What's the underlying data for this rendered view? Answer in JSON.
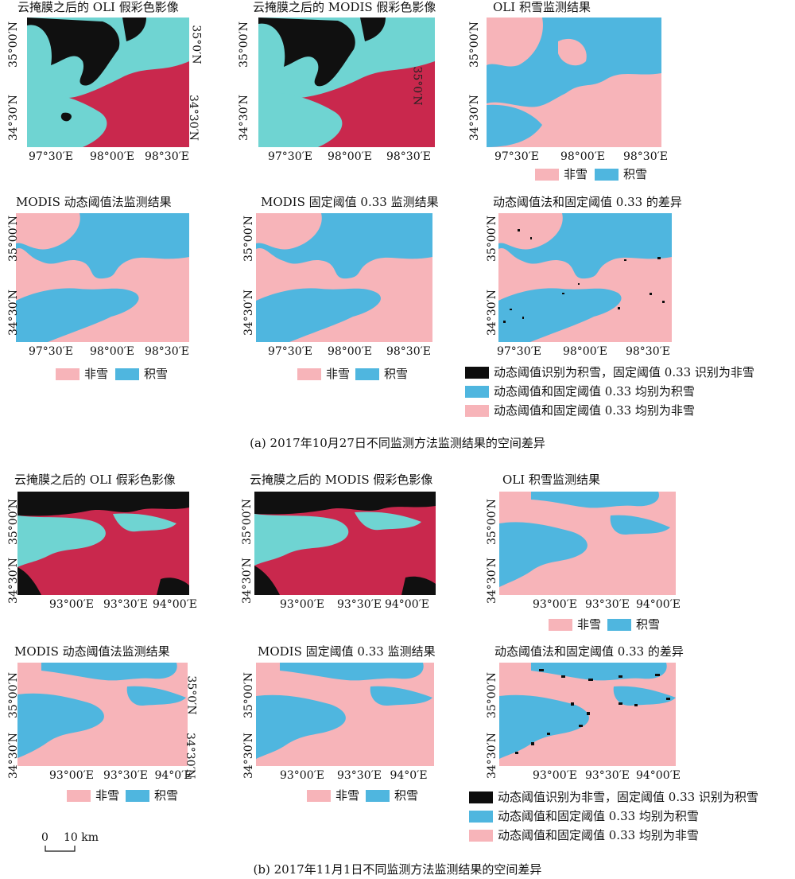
{
  "colors": {
    "non_snow": "#f7b4b9",
    "snow": "#4fb6df",
    "diff_black": "#0d0d0d",
    "fc_black": "#101010",
    "fc_cyan": "#6fd4d2",
    "fc_red": "#c9284d"
  },
  "section_a": {
    "titles": {
      "oli_fc": "云掩膜之后的 OLI 假彩色影像",
      "modis_fc": "云掩膜之后的 MODIS 假彩色影像",
      "oli_snow": "OLI 积雪监测结果",
      "modis_dyn": "MODIS 动态阈值法监测结果",
      "modis_fixed": "MODIS 固定阈值 0.33 监测结果",
      "diff": "动态阈值法和固定阈值 0.33 的差异"
    },
    "xticks": [
      "97°30′E",
      "98°00′E",
      "98°30′E"
    ],
    "yticks": [
      "35°00′N",
      "34°30′N"
    ],
    "yticks_right_oli": [
      "35°0′N",
      "34°30′N"
    ],
    "ytick_mid_modis": "35°0′N",
    "legend": {
      "non_snow": "非雪",
      "snow": "积雪"
    },
    "diff_legend": {
      "black": "动态阈值识别为积雪，固定阈值 0.33 识别为非雪",
      "blue": "动态阈值和固定阈值 0.33 均别为积雪",
      "pink": "动态阈值和固定阈值 0.33 均别为非雪"
    },
    "caption": "(a) 2017年10月27日不同监测方法监测结果的空间差异"
  },
  "section_b": {
    "titles": {
      "oli_fc": "云掩膜之后的 OLI 假彩色影像",
      "modis_fc": "云掩膜之后的 MODIS 假彩色影像",
      "oli_snow": "OLI 积雪监测结果",
      "modis_dyn": "MODIS 动态阈值法监测结果",
      "modis_fixed": "MODIS 固定阈值 0.33 监测结果",
      "diff": "动态阈值法和固定阈值 0.33 的差异"
    },
    "xticks": [
      "93°00′E",
      "93°30′E",
      "94°00′E"
    ],
    "xticks_alt": [
      "93°00′E",
      "93°30′E",
      "94°0′E"
    ],
    "yticks": [
      "35°00′N",
      "34°30′N"
    ],
    "yticks_right_dyn": [
      "35°0′N",
      "34°30′N"
    ],
    "legend": {
      "non_snow": "非雪",
      "snow": "积雪"
    },
    "diff_legend": {
      "black": "动态阈值识别为非雪，固定阈值 0.33 识别为积雪",
      "blue": "动态阈值和固定阈值 0.33 均别为积雪",
      "pink": "动态阈值和固定阈值 0.33 均别为非雪"
    },
    "scale_labels": {
      "zero": "0",
      "ten": "10 km"
    },
    "caption": "(b) 2017年11月1日不同监测方法监测结果的空间差异"
  }
}
